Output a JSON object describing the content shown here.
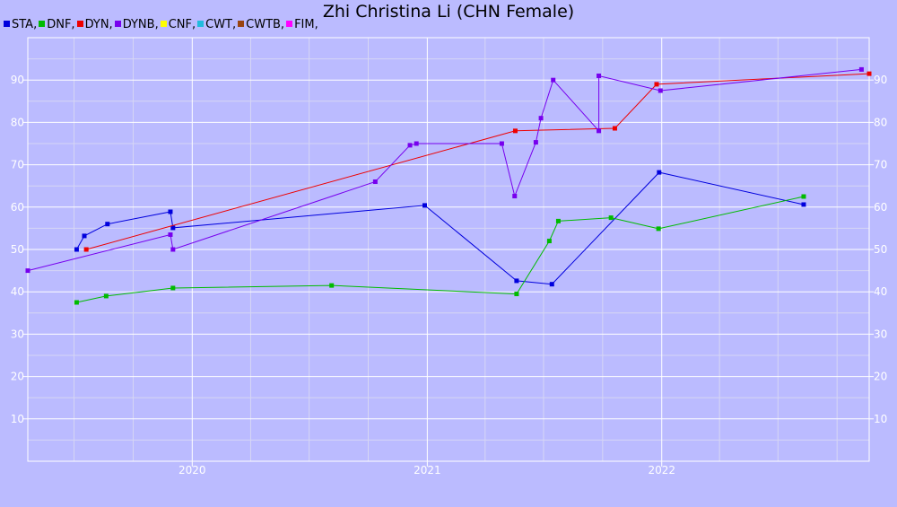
{
  "chart_data": {
    "type": "line",
    "title": "Zhi Christina Li (CHN Female)",
    "xlabel": "",
    "ylabel": "",
    "ylim": [
      0,
      100
    ],
    "yticks": [
      10,
      20,
      30,
      40,
      50,
      60,
      70,
      80,
      90
    ],
    "xlim": [
      "2019-04-20",
      "2022-11-20"
    ],
    "xticks": [
      {
        "label": "2020",
        "date": "2020-01-01"
      },
      {
        "label": "2021",
        "date": "2021-01-01"
      },
      {
        "label": "2022",
        "date": "2022-01-01"
      }
    ],
    "grid": true,
    "legend_position": "top-left",
    "legend": [
      {
        "label": "STA,",
        "color": "#0000dd"
      },
      {
        "label": "DNF,",
        "color": "#00bb00"
      },
      {
        "label": "DYN,",
        "color": "#ee0000"
      },
      {
        "label": "DYNB,",
        "color": "#7700ee"
      },
      {
        "label": "CNF,",
        "color": "#ffff00"
      },
      {
        "label": "CWT,",
        "color": "#22bbdd"
      },
      {
        "label": "CWTB,",
        "color": "#994411"
      },
      {
        "label": "FIM,",
        "color": "#ff00ff"
      }
    ],
    "series": [
      {
        "name": "STA",
        "color": "#0000dd",
        "points": [
          [
            "2019-07-05",
            50
          ],
          [
            "2019-07-17",
            53.2
          ],
          [
            "2019-08-22",
            56
          ],
          [
            "2019-11-28",
            58.9
          ],
          [
            "2019-12-02",
            55.1
          ],
          [
            "2020-12-28",
            60.4
          ],
          [
            "2021-05-20",
            42.6
          ],
          [
            "2021-07-14",
            41.8
          ],
          [
            "2021-12-28",
            68.2
          ],
          [
            "2022-08-10",
            60.6
          ]
        ]
      },
      {
        "name": "DNF",
        "color": "#00bb00",
        "points": [
          [
            "2019-07-05",
            37.5
          ],
          [
            "2019-08-20",
            39
          ],
          [
            "2019-12-02",
            40.9
          ],
          [
            "2020-08-05",
            41.5
          ],
          [
            "2021-05-20",
            39.5
          ],
          [
            "2021-07-10",
            52
          ],
          [
            "2021-07-24",
            56.7
          ],
          [
            "2021-10-14",
            57.5
          ],
          [
            "2021-12-27",
            54.9
          ],
          [
            "2022-08-10",
            62.5
          ]
        ]
      },
      {
        "name": "DYN",
        "color": "#ee0000",
        "points": [
          [
            "2019-07-20",
            50
          ],
          [
            "2021-05-18",
            78
          ],
          [
            "2021-10-20",
            78.6
          ],
          [
            "2021-12-24",
            89
          ],
          [
            "2022-11-20",
            91.5
          ]
        ]
      },
      {
        "name": "DYNB",
        "color": "#7700ee",
        "points": [
          [
            "2019-04-20",
            45
          ],
          [
            "2019-11-28",
            53.5
          ],
          [
            "2019-12-02",
            50
          ],
          [
            "2020-10-12",
            66
          ],
          [
            "2020-12-05",
            74.6
          ],
          [
            "2020-12-15",
            75
          ],
          [
            "2021-04-27",
            75
          ],
          [
            "2021-05-17",
            62.6
          ],
          [
            "2021-06-19",
            75.3
          ],
          [
            "2021-06-27",
            81
          ],
          [
            "2021-07-16",
            90
          ],
          [
            "2021-09-25",
            78
          ],
          [
            "2021-09-25",
            91
          ],
          [
            "2021-12-30",
            87.5
          ],
          [
            "2022-11-08",
            92.5
          ]
        ]
      }
    ]
  }
}
